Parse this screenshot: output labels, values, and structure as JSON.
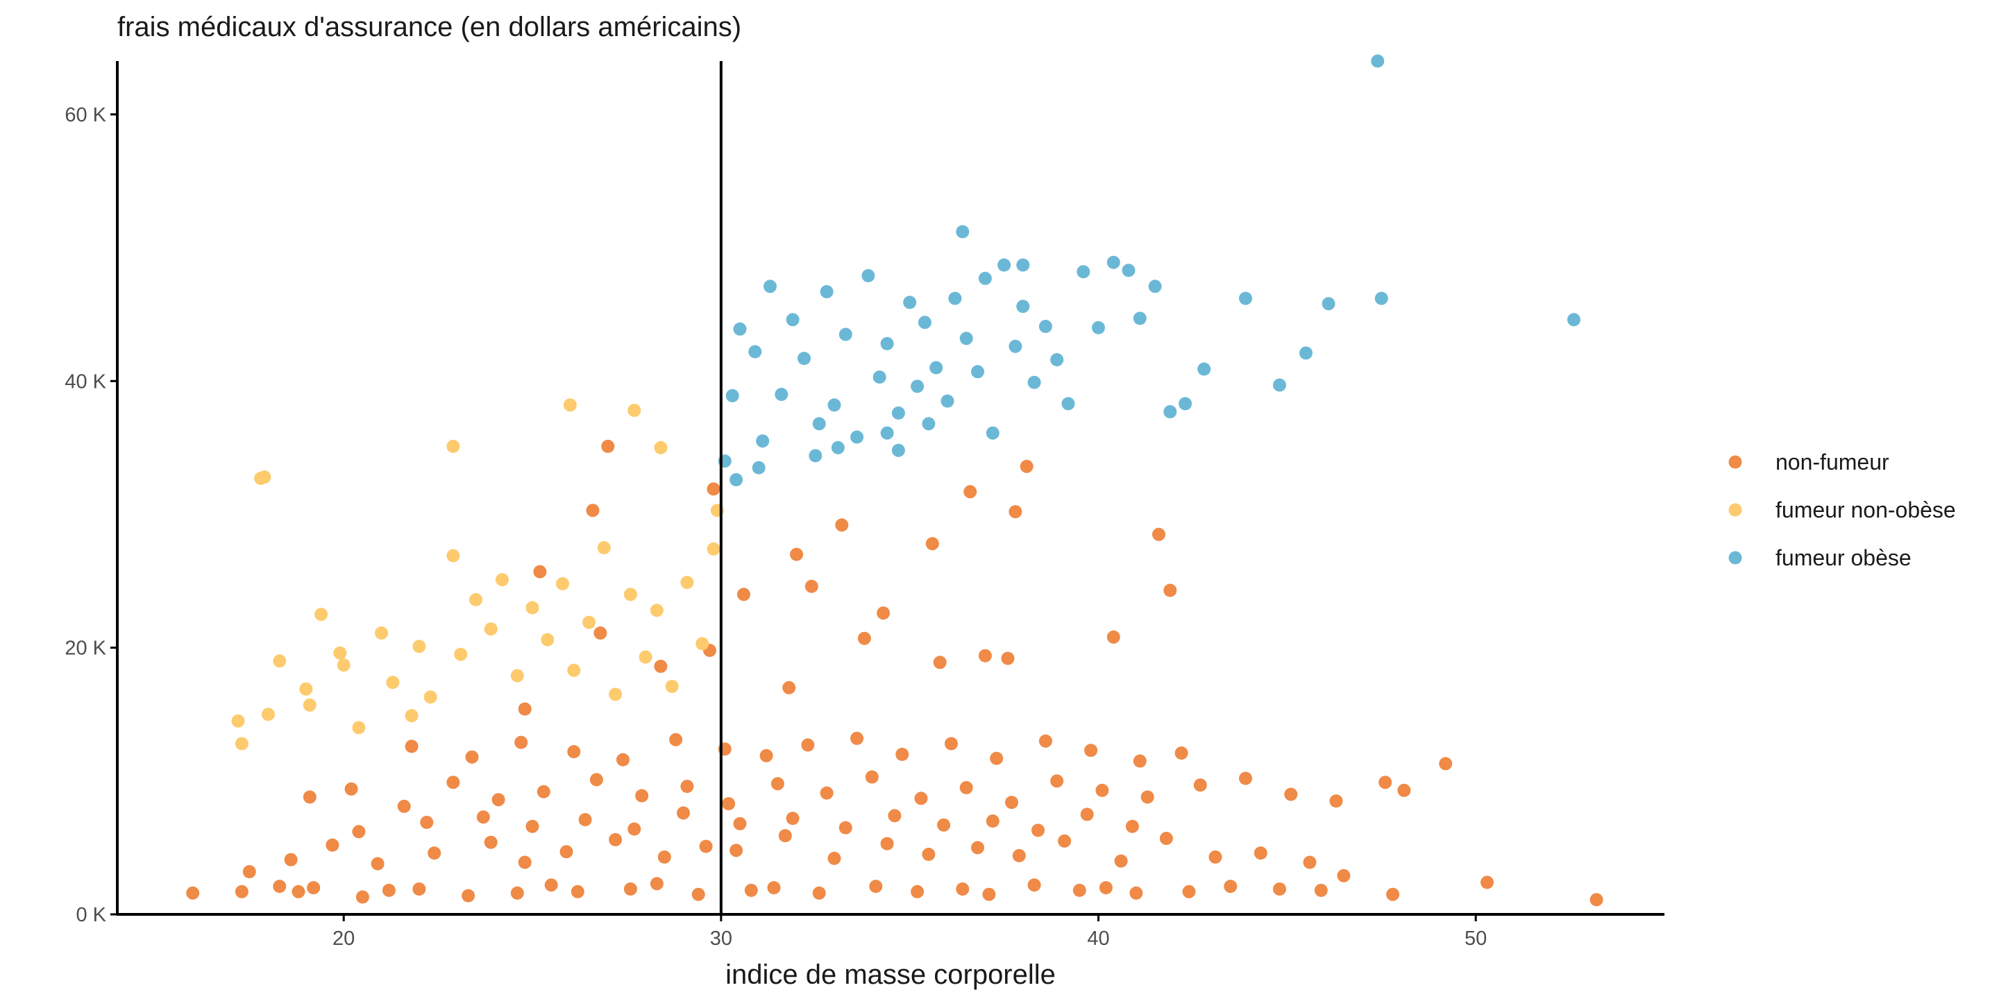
{
  "chart_data": {
    "type": "scatter",
    "title": "",
    "ylabel": "frais médicaux d'assurance (en dollars américains)",
    "xlabel": "indice de masse corporelle",
    "xlim": [
      14,
      55
    ],
    "ylim": [
      0,
      64000
    ],
    "xticks": [
      20,
      30,
      40,
      50
    ],
    "yticks": [
      0,
      20000,
      40000,
      60000
    ],
    "ytick_labels": [
      "0 K",
      "20 K",
      "40 K",
      "60 K"
    ],
    "reference_line": {
      "axis": "x",
      "value": 30
    },
    "legend": {
      "position": "right"
    },
    "series": [
      {
        "name": "non-fumeur",
        "color": "#EF8A47",
        "note": "dense cloud 16–53 BMI, mostly 1K–15K; sparse upper band to ~35K",
        "x": [
          16.0,
          17.3,
          18.3,
          18.8,
          19.2,
          20.5,
          21.2,
          22.0,
          23.3,
          24.6,
          25.5,
          26.2,
          27.6,
          28.3,
          29.4,
          30.8,
          31.4,
          32.6,
          34.1,
          35.2,
          36.4,
          37.1,
          38.3,
          39.5,
          40.2,
          41.0,
          42.4,
          43.5,
          44.8,
          45.9,
          46.5,
          47.8,
          49.2,
          50.3,
          53.2,
          17.5,
          18.6,
          19.7,
          20.9,
          22.4,
          23.9,
          24.8,
          25.9,
          27.2,
          28.5,
          29.6,
          30.4,
          31.7,
          33.0,
          34.4,
          35.5,
          36.8,
          37.9,
          39.1,
          40.6,
          41.8,
          43.1,
          44.3,
          45.6,
          19.1,
          20.2,
          21.6,
          22.9,
          24.1,
          25.3,
          26.7,
          27.9,
          29.1,
          30.2,
          31.5,
          32.8,
          34.0,
          35.3,
          36.5,
          37.7,
          38.9,
          40.1,
          41.3,
          42.7,
          43.9,
          45.1,
          46.3,
          47.6,
          48.1,
          21.8,
          23.4,
          24.7,
          26.1,
          27.4,
          28.8,
          30.1,
          31.2,
          32.3,
          33.6,
          34.8,
          36.1,
          37.3,
          38.6,
          39.8,
          41.1,
          42.2,
          20.4,
          22.2,
          23.7,
          25.0,
          26.4,
          27.7,
          29.0,
          30.5,
          31.9,
          33.3,
          34.6,
          35.9,
          37.2,
          38.4,
          39.7,
          40.9,
          25.2,
          26.6,
          27.0,
          29.8,
          30.6,
          32.0,
          33.2,
          34.3,
          35.6,
          36.6,
          37.8,
          38.1,
          40.4,
          41.6,
          41.9,
          24.8,
          26.8,
          28.4,
          29.7,
          31.8,
          32.4,
          33.8,
          35.8,
          37.0,
          37.6
        ],
        "y": [
          1600,
          1700,
          2100,
          1700,
          2000,
          1300,
          1800,
          1900,
          1400,
          1600,
          2200,
          1700,
          1900,
          2300,
          1500,
          1800,
          2000,
          1600,
          2100,
          1700,
          1900,
          1500,
          2200,
          1800,
          2000,
          1600,
          1700,
          2100,
          1900,
          1800,
          2900,
          1500,
          11300,
          2400,
          1100,
          3200,
          4100,
          5200,
          3800,
          4600,
          5400,
          3900,
          4700,
          5600,
          4300,
          5100,
          4800,
          5900,
          4200,
          5300,
          4500,
          5000,
          4400,
          5500,
          4000,
          5700,
          4300,
          4600,
          3900,
          8800,
          9400,
          8100,
          9900,
          8600,
          9200,
          10100,
          8900,
          9600,
          8300,
          9800,
          9100,
          10300,
          8700,
          9500,
          8400,
          10000,
          9300,
          8800,
          9700,
          10200,
          9000,
          8500,
          9900,
          9300,
          12600,
          11800,
          12900,
          12200,
          11600,
          13100,
          12400,
          11900,
          12700,
          13200,
          12000,
          12800,
          11700,
          13000,
          12300,
          11500,
          12100,
          6200,
          6900,
          7300,
          6600,
          7100,
          6400,
          7600,
          6800,
          7200,
          6500,
          7400,
          6700,
          7000,
          6300,
          7500,
          6600,
          25700,
          30300,
          35100,
          31900,
          24000,
          27000,
          29200,
          22600,
          27800,
          31700,
          30200,
          33600,
          20800,
          28500,
          24300,
          15400,
          21100,
          18600,
          19800,
          17000,
          24600,
          20700,
          18900,
          19400,
          19200
        ]
      },
      {
        "name": "fumeur non-obèse",
        "color": "#FDCB6E",
        "note": "BMI 17–30, charges ~12K–38K",
        "x": [
          17.2,
          17.3,
          17.8,
          18.0,
          18.3,
          19.0,
          19.1,
          19.4,
          19.9,
          20.0,
          20.4,
          21.0,
          21.3,
          21.8,
          22.0,
          22.3,
          22.9,
          23.1,
          23.5,
          23.9,
          24.2,
          24.6,
          25.0,
          25.4,
          25.8,
          26.1,
          26.5,
          26.9,
          27.2,
          27.6,
          28.0,
          28.3,
          28.7,
          29.1,
          29.5,
          29.8,
          29.9,
          26.0,
          27.7,
          22.9,
          28.4,
          17.9
        ],
        "y": [
          14500,
          12800,
          32700,
          15000,
          19000,
          16900,
          15700,
          22500,
          19600,
          18700,
          14000,
          21100,
          17400,
          14900,
          20100,
          16300,
          26900,
          19500,
          23600,
          21400,
          25100,
          17900,
          23000,
          20600,
          24800,
          18300,
          21900,
          27500,
          16500,
          24000,
          19300,
          22800,
          17100,
          24900,
          20300,
          27400,
          30300,
          38200,
          37800,
          35100,
          35000,
          32800
        ]
      },
      {
        "name": "fumeur obèse",
        "color": "#6BB8D6",
        "note": "BMI 30–53, charges ~32K–64K",
        "x": [
          30.1,
          30.3,
          30.5,
          30.9,
          31.1,
          31.3,
          31.6,
          31.9,
          32.2,
          32.6,
          32.8,
          33.0,
          33.3,
          33.6,
          33.9,
          34.2,
          34.4,
          34.7,
          35.0,
          35.2,
          35.4,
          35.7,
          36.0,
          36.2,
          36.5,
          36.8,
          37.0,
          37.2,
          37.5,
          37.8,
          38.0,
          38.3,
          38.6,
          38.9,
          39.2,
          39.6,
          40.0,
          40.4,
          40.8,
          41.1,
          41.5,
          41.9,
          42.3,
          42.8,
          43.9,
          44.8,
          45.5,
          46.1,
          47.5,
          52.6,
          30.4,
          31.0,
          32.5,
          33.1,
          34.4,
          35.5,
          38.0,
          47.4,
          36.4,
          34.7
        ],
        "y": [
          34000,
          38900,
          43900,
          42200,
          35500,
          47100,
          39000,
          44600,
          41700,
          36800,
          46700,
          38200,
          43500,
          35800,
          47900,
          40300,
          42800,
          37600,
          45900,
          39600,
          44400,
          41000,
          38500,
          46200,
          43200,
          40700,
          47700,
          36100,
          48700,
          42600,
          45600,
          39900,
          44100,
          41600,
          38300,
          48200,
          44000,
          48900,
          48300,
          44700,
          47100,
          37700,
          38300,
          40900,
          46200,
          39700,
          42100,
          45800,
          46200,
          44600,
          32600,
          33500,
          34400,
          35000,
          36100,
          36800,
          48700,
          64000,
          51200,
          34800
        ]
      }
    ]
  },
  "legend_items": [
    {
      "label": "non-fumeur",
      "color": "#EF8A47"
    },
    {
      "label": "fumeur non-obèse",
      "color": "#FDCB6E"
    },
    {
      "label": "fumeur obèse",
      "color": "#6BB8D6"
    }
  ]
}
